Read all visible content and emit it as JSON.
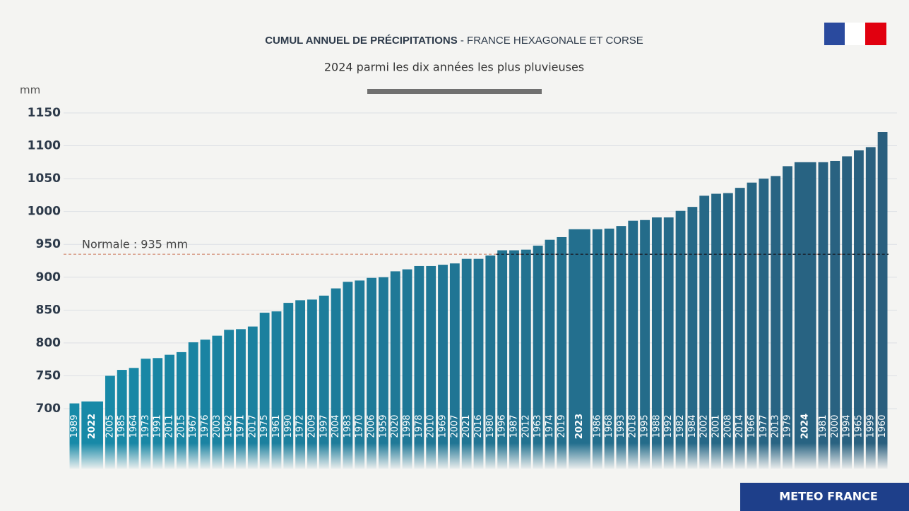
{
  "chart_data": {
    "type": "bar",
    "title": "CUMUL ANNUEL DE PRÉCIPITATIONS",
    "title_suffix": " - FRANCE HEXAGONALE ET CORSE",
    "subtitle": "2024 parmi les dix années les plus pluvieuses",
    "y_label": "mm",
    "categories": [
      "1989",
      "2022",
      "2005",
      "1985",
      "1964",
      "1973",
      "1991",
      "2011",
      "2015",
      "1967",
      "1976",
      "2003",
      "1962",
      "1971",
      "2017",
      "1975",
      "1961",
      "1990",
      "1972",
      "2009",
      "1997",
      "2004",
      "1983",
      "1970",
      "2006",
      "1959",
      "2020",
      "1998",
      "1978",
      "2010",
      "1969",
      "2007",
      "2021",
      "2016",
      "1980",
      "1996",
      "1987",
      "2012",
      "1963",
      "1974",
      "2019",
      "2023",
      "1986",
      "1968",
      "1993",
      "2018",
      "1995",
      "1988",
      "1992",
      "1982",
      "1984",
      "2002",
      "2001",
      "2008",
      "2014",
      "1966",
      "1977",
      "2013",
      "1979",
      "2024",
      "1981",
      "2000",
      "1994",
      "1965",
      "1999",
      "1960"
    ],
    "values": [
      708,
      711,
      750,
      759,
      762,
      776,
      777,
      782,
      786,
      801,
      805,
      811,
      820,
      821,
      825,
      846,
      848,
      861,
      865,
      866,
      872,
      883,
      893,
      895,
      899,
      900,
      909,
      912,
      917,
      917,
      919,
      921,
      928,
      928,
      933,
      941,
      941,
      942,
      948,
      957,
      961,
      973,
      973,
      974,
      978,
      986,
      987,
      991,
      991,
      1001,
      1007,
      1024,
      1027,
      1028,
      1036,
      1044,
      1050,
      1054,
      1069,
      1075,
      1075,
      1077,
      1084,
      1093,
      1098,
      1121
    ],
    "highlight": [
      1,
      41,
      59
    ],
    "color_start": "#178aa8",
    "color_end": "#2a5f7e",
    "ylim": [
      700,
      1150
    ],
    "yticks": [
      700,
      750,
      800,
      850,
      900,
      950,
      1000,
      1050,
      1100,
      1150
    ],
    "grid": true,
    "reference": {
      "value": 935,
      "label": "Normale : 935 mm"
    },
    "footer": "METEO FRANCE"
  }
}
